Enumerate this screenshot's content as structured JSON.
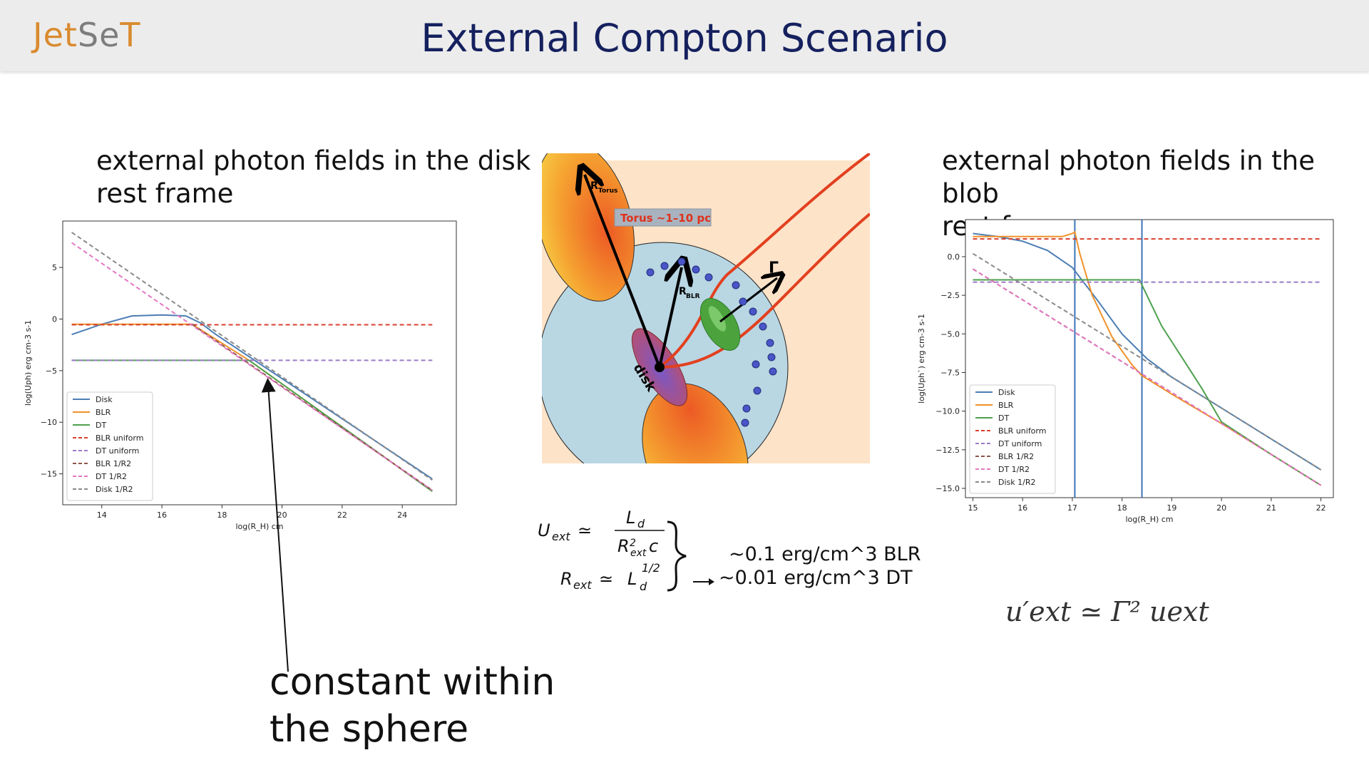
{
  "header": {
    "logo_part1": "Jet",
    "logo_part2": "Se",
    "logo_part3": "T",
    "title": "External  Compton Scenario",
    "band_color": "#ececec",
    "title_color": "#15205e"
  },
  "left": {
    "caption_line1": "external photon fields in the disk",
    "caption_line2": "rest frame",
    "annotation_line1": "constant within",
    "annotation_line2": "the sphere"
  },
  "right": {
    "caption_line1": "external photon fields in the blob",
    "caption_line2": "rest frame",
    "formula": "u′ext ≃ Γ² uext"
  },
  "diagram": {
    "torus_label": "Torus ~1–10 pc",
    "r_torus": "R",
    "r_torus_sub": "Torus",
    "r_blr": "R",
    "r_blr_sub": "BLR",
    "gamma": "Γ",
    "disk_label": "disk"
  },
  "equations": {
    "u_ext": "U",
    "u_ext_sub": "ext",
    "simeq": "≃",
    "numerator": "L",
    "numerator_sub": "d",
    "denominator": "R",
    "denominator_sup": "2",
    "denominator_sub": "ext",
    "denominator_c": "c",
    "r_ext": "R",
    "r_ext_sub": "ext",
    "r_rhs": "L",
    "r_rhs_sub": "d",
    "r_rhs_sup": "1/2",
    "blr_value": "~0.1   erg/cm^3 BLR",
    "dt_value": "~0.01  erg/cm^3 DT"
  },
  "chart_data": [
    {
      "type": "line",
      "xlabel": "log(R_H) cm",
      "ylabel": "log(Uph) erg cm-3 s-1",
      "xlim": [
        12.7,
        25.8
      ],
      "ylim": [
        -18.0,
        9.5
      ],
      "xticks": [
        14,
        16,
        18,
        20,
        22,
        24
      ],
      "yticks": [
        5,
        0,
        -5,
        -10,
        -15
      ],
      "ytick_labels": [
        "5",
        "0",
        "−5",
        "−10",
        "−15"
      ],
      "legend_position": "lower-left",
      "series": [
        {
          "name": "Disk",
          "color": "#4c7eb4",
          "dash": "solid",
          "x": [
            13,
            14,
            15,
            16,
            16.8,
            17.3,
            17.8,
            25
          ],
          "y": [
            -1.5,
            -0.5,
            0.3,
            0.4,
            0.3,
            -0.4,
            -1.5,
            -15.5
          ]
        },
        {
          "name": "BLR",
          "color": "#f0922a",
          "dash": "solid",
          "x": [
            13,
            17.0,
            18.9,
            25
          ],
          "y": [
            -0.5,
            -0.5,
            -4.0,
            -16.7
          ]
        },
        {
          "name": "DT",
          "color": "#4ea04e",
          "dash": "solid",
          "x": [
            13,
            18.9,
            25
          ],
          "y": [
            -4.0,
            -4.0,
            -16.7
          ]
        },
        {
          "name": "BLR uniform",
          "color": "#d9402f",
          "dash": "dashed",
          "x": [
            13,
            25
          ],
          "y": [
            -0.55,
            -0.55
          ]
        },
        {
          "name": "DT uniform",
          "color": "#9c7bc9",
          "dash": "dashed",
          "x": [
            13,
            25
          ],
          "y": [
            -4.0,
            -4.0
          ]
        },
        {
          "name": "BLR 1/R2",
          "color": "#8c564b",
          "dash": "dashed",
          "x": [
            17.0,
            25
          ],
          "y": [
            -0.5,
            -16.6
          ]
        },
        {
          "name": "DT 1/R2",
          "color": "#e377c2",
          "dash": "dashed",
          "x": [
            13,
            25
          ],
          "y": [
            7.4,
            -16.6
          ]
        },
        {
          "name": "Disk 1/R2",
          "color": "#8a8a8a",
          "dash": "dashed",
          "x": [
            13,
            25
          ],
          "y": [
            8.4,
            -15.6
          ]
        }
      ]
    },
    {
      "type": "line",
      "xlabel": "log(R_H) cm",
      "ylabel": "log(Uph`) erg cm-3 s-1",
      "xlim": [
        14.85,
        22.25
      ],
      "ylim": [
        -15.6,
        2.4
      ],
      "xticks": [
        15,
        16,
        17,
        18,
        19,
        20,
        21,
        22
      ],
      "yticks": [
        0.0,
        -2.5,
        -5.0,
        -7.5,
        -10.0,
        -12.5,
        -15.0
      ],
      "ytick_labels": [
        "0.0",
        "−2.5",
        "−5.0",
        "−7.5",
        "−10.0",
        "−12.5",
        "−15.0"
      ],
      "vlines": [
        17.05,
        18.4
      ],
      "legend_position": "lower-left",
      "series": [
        {
          "name": "Disk",
          "color": "#4c7eb4",
          "dash": "solid",
          "x": [
            15,
            15.5,
            16,
            16.5,
            17,
            17.5,
            18,
            18.5,
            19,
            20,
            21,
            22
          ],
          "y": [
            1.5,
            1.3,
            1.0,
            0.4,
            -0.7,
            -2.8,
            -5.0,
            -6.6,
            -7.8,
            -9.8,
            -11.8,
            -13.8
          ]
        },
        {
          "name": "BLR",
          "color": "#f0922a",
          "dash": "solid",
          "x": [
            15,
            16.8,
            17.0,
            17.05,
            17.15,
            17.4,
            17.8,
            18.2,
            18.4,
            19,
            20,
            21,
            22
          ],
          "y": [
            1.3,
            1.3,
            1.5,
            1.6,
            0.2,
            -2.5,
            -5.2,
            -7.0,
            -7.7,
            -8.9,
            -10.8,
            -12.8,
            -14.8
          ]
        },
        {
          "name": "DT",
          "color": "#4ea04e",
          "dash": "solid",
          "x": [
            15,
            18.35,
            18.5,
            18.8,
            19.2,
            19.6,
            20,
            21,
            22
          ],
          "y": [
            -1.5,
            -1.5,
            -2.5,
            -4.5,
            -6.5,
            -8.5,
            -10.7,
            -12.8,
            -14.8
          ]
        },
        {
          "name": "BLR uniform",
          "color": "#d9402f",
          "dash": "dashed",
          "x": [
            15,
            22
          ],
          "y": [
            1.15,
            1.15
          ]
        },
        {
          "name": "DT uniform",
          "color": "#9c7bc9",
          "dash": "dashed",
          "x": [
            15,
            22
          ],
          "y": [
            -1.65,
            -1.65
          ]
        },
        {
          "name": "BLR 1/R2",
          "color": "#8c564b",
          "dash": "dashed",
          "x": [
            15,
            22
          ],
          "y": [
            -0.8,
            -14.8
          ]
        },
        {
          "name": "DT 1/R2",
          "color": "#e377c2",
          "dash": "dashed",
          "x": [
            15,
            22
          ],
          "y": [
            -0.8,
            -14.8
          ]
        },
        {
          "name": "Disk 1/R2",
          "color": "#8a8a8a",
          "dash": "dashed",
          "x": [
            15,
            22
          ],
          "y": [
            0.2,
            -13.8
          ]
        }
      ]
    }
  ]
}
